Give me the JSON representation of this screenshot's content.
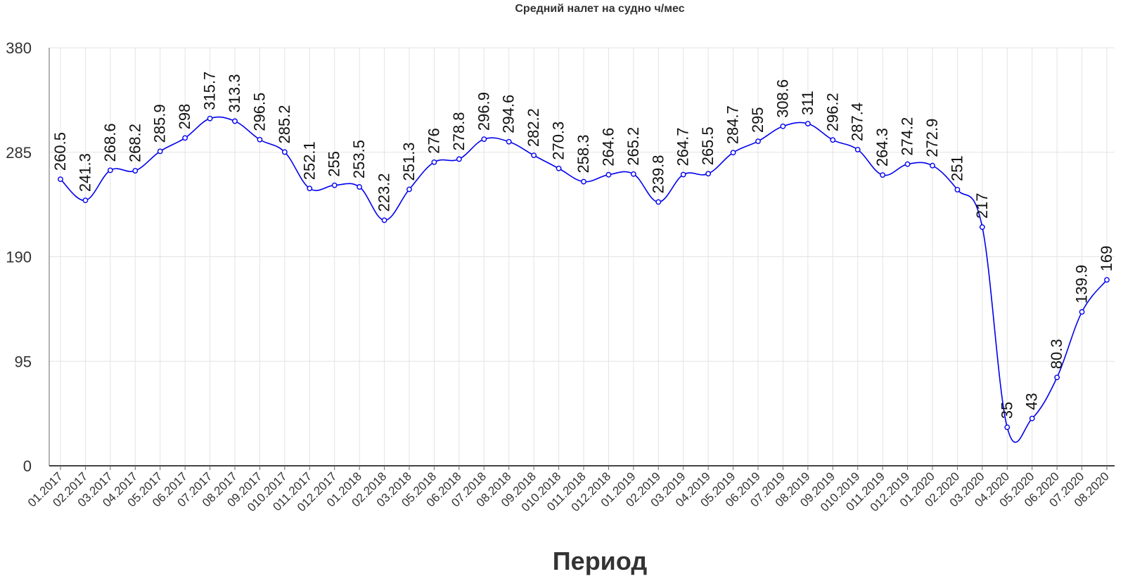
{
  "chart_data": {
    "type": "line",
    "title": "Средний налет на судно ч/мес",
    "xlabel": "Период",
    "ylabel": "",
    "ylim": [
      0,
      380
    ],
    "yticks": [
      0,
      95,
      190,
      285,
      380
    ],
    "grid": true,
    "categories": [
      "01.2017",
      "02.2017",
      "03.2017",
      "04.2017",
      "05.2017",
      "06.2017",
      "07.2017",
      "08.2017",
      "09.2017",
      "010.2017",
      "011.2017",
      "012.2017",
      "01.2018",
      "02.2018",
      "03.2018",
      "05.2018",
      "06.2018",
      "07.2018",
      "08.2018",
      "09.2018",
      "010.2018",
      "011.2018",
      "012.2018",
      "01.2019",
      "02.2019",
      "03.2019",
      "04.2019",
      "05.2019",
      "06.2019",
      "07.2019",
      "08.2019",
      "09.2019",
      "010.2019",
      "011.2019",
      "012.2019",
      "01.2020",
      "02.2020",
      "03.2020",
      "04.2020",
      "05.2020",
      "06.2020",
      "07.2020",
      "08.2020"
    ],
    "series": [
      {
        "color": "#0000ee",
        "values": [
          260.5,
          241.3,
          268.6,
          268.2,
          285.9,
          298,
          315.7,
          313.3,
          296.5,
          285.2,
          252.1,
          255,
          253.5,
          223.2,
          251.3,
          276,
          278.8,
          296.9,
          294.6,
          282.2,
          270.3,
          258.3,
          264.6,
          265.2,
          239.8,
          264.7,
          265.5,
          284.7,
          295,
          308.6,
          311,
          296.2,
          287.4,
          264.3,
          274.2,
          272.9,
          251,
          217,
          35,
          43,
          80.3,
          139.9,
          169
        ],
        "labels": [
          "260.5",
          "241.3",
          "268.6",
          "268.2",
          "285.9",
          "298",
          "315.7",
          "313.3",
          "296.5",
          "285.2",
          "252.1",
          "255",
          "253.5",
          "223.2",
          "251.3",
          "276",
          "278.8",
          "296.9",
          "294.6",
          "282.2",
          "270.3",
          "258.3",
          "264.6",
          "265.2",
          "239.8",
          "264.7",
          "265.5",
          "284.7",
          "295",
          "308.6",
          "311",
          "296.2",
          "287.4",
          "264.3",
          "274.2",
          "272.9",
          "251",
          "217",
          "35",
          "43",
          "80.3",
          "139.9",
          "169"
        ]
      }
    ]
  }
}
